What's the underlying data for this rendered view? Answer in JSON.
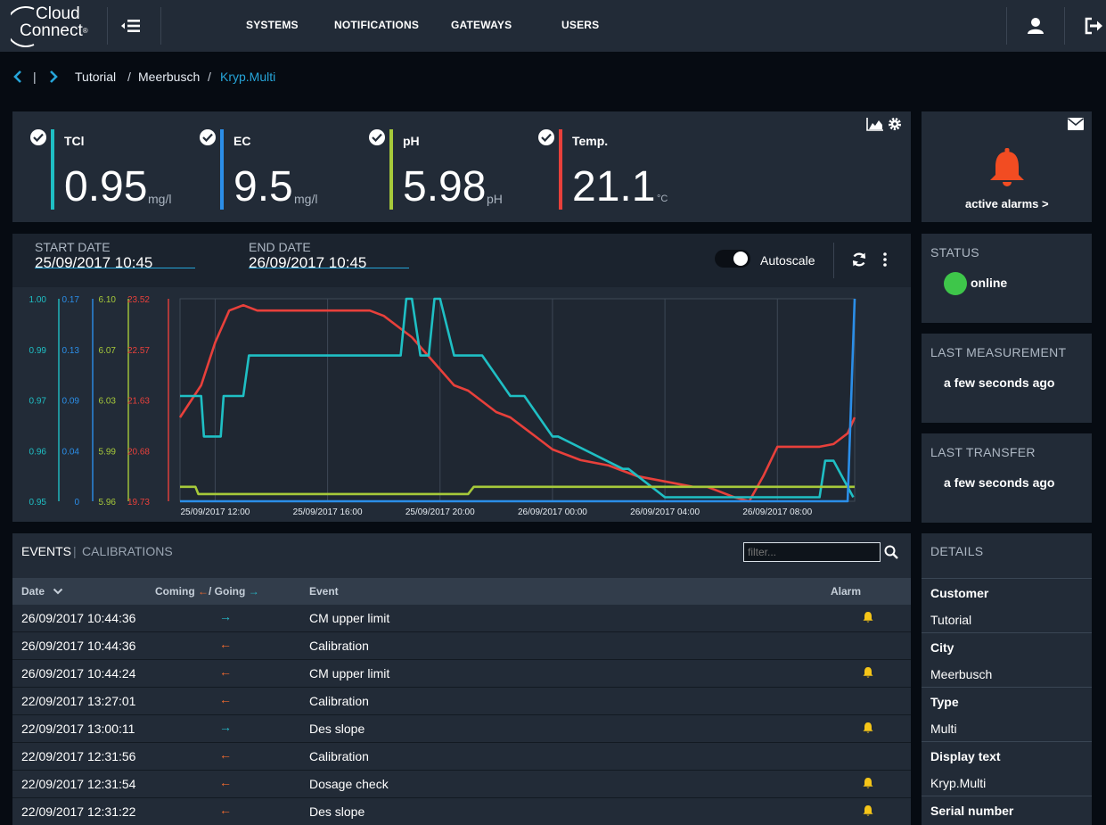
{
  "brand": {
    "line1": "Cloud",
    "line2": "Connect",
    "mark": "®"
  },
  "nav": {
    "items": [
      "SYSTEMS",
      "NOTIFICATIONS",
      "GATEWAYS",
      "USERS"
    ]
  },
  "breadcrumb": {
    "separator": "|",
    "items": [
      "Tutorial",
      "Meerbusch",
      "Kryp.Multi"
    ],
    "slash": "/"
  },
  "kpis": [
    {
      "name": "TCl",
      "value": "0.95",
      "unit": "mg/l",
      "color": "#1fbfc4"
    },
    {
      "name": "EC",
      "value": "9.5",
      "unit": "mg/l",
      "color": "#2b8ee8"
    },
    {
      "name": "pH",
      "value": "5.98",
      "unit": "pH",
      "color": "#a6c93a"
    },
    {
      "name": "Temp.",
      "value": "21.1",
      "unit": "°C",
      "color": "#e8403b"
    }
  ],
  "alarms": {
    "label": "active alarms >",
    "color": "#f24c22"
  },
  "status": {
    "title": "STATUS",
    "value": "online",
    "color": "#3ec64a"
  },
  "last_measurement": {
    "title": "LAST MEASUREMENT",
    "value": "a few seconds ago"
  },
  "last_transfer": {
    "title": "LAST TRANSFER",
    "value": "a few seconds ago"
  },
  "chart_controls": {
    "start_label": "START DATE",
    "start_value": "25/09/2017 10:45",
    "end_label": "END DATE",
    "end_value": "26/09/2017 10:45",
    "autoscale_label": "Autoscale",
    "autoscale_on": true
  },
  "chart_data": {
    "type": "line",
    "x_ticks": [
      "25/09/2017 12:00",
      "25/09/2017 16:00",
      "25/09/2017 20:00",
      "26/09/2017 00:00",
      "26/09/2017 04:00",
      "26/09/2017 08:00"
    ],
    "y_axes": [
      {
        "name": "TCl",
        "color": "#1fbfc4",
        "ticks": [
          "1.00",
          "0.99",
          "0.97",
          "0.96",
          "0.95"
        ],
        "ylim": [
          0.95,
          1.0
        ]
      },
      {
        "name": "EC",
        "color": "#2b8ee8",
        "ticks": [
          "0.17",
          "0.13",
          "0.09",
          "0.04",
          "0"
        ],
        "ylim": [
          0,
          0.17
        ]
      },
      {
        "name": "pH",
        "color": "#a6c93a",
        "ticks": [
          "6.10",
          "6.07",
          "6.03",
          "5.99",
          "5.96"
        ],
        "ylim": [
          5.96,
          6.1
        ]
      },
      {
        "name": "Temp.",
        "color": "#e8403b",
        "ticks": [
          "23.52",
          "22.57",
          "21.63",
          "20.68",
          "19.73"
        ],
        "ylim": [
          19.73,
          23.52
        ]
      }
    ],
    "xlim": [
      10.75,
      34.75
    ],
    "series": [
      {
        "name": "Temp.",
        "axis": 3,
        "color": "#e8403b",
        "x": [
          10.75,
          11.0,
          11.5,
          12.0,
          12.5,
          13.0,
          13.5,
          14.0,
          14.5,
          15.0,
          15.5,
          16.0,
          16.5,
          17.0,
          17.5,
          18.0,
          18.5,
          19.0,
          19.5,
          20.0,
          20.5,
          21.0,
          21.5,
          22.0,
          22.5,
          23.0,
          23.5,
          24.0,
          24.5,
          25.0,
          25.5,
          26.0,
          26.5,
          27.0,
          27.5,
          28.0,
          28.5,
          29.0,
          29.5,
          30.0,
          30.5,
          31.0,
          31.5,
          32.0,
          32.5,
          33.0,
          33.5,
          34.0,
          34.5,
          34.75
        ],
        "values": [
          21.3,
          21.5,
          21.9,
          22.7,
          23.3,
          23.4,
          23.3,
          23.3,
          23.3,
          23.3,
          23.3,
          23.3,
          23.3,
          23.3,
          23.3,
          23.2,
          23.0,
          22.8,
          22.5,
          22.2,
          21.9,
          21.8,
          21.6,
          21.4,
          21.3,
          21.1,
          20.9,
          20.7,
          20.6,
          20.5,
          20.45,
          20.4,
          20.3,
          20.2,
          20.15,
          20.1,
          20.05,
          20.0,
          20.0,
          19.9,
          19.8,
          19.73,
          20.2,
          20.75,
          20.75,
          20.75,
          20.75,
          20.8,
          21.0,
          21.3
        ]
      },
      {
        "name": "TCl",
        "axis": 0,
        "color": "#1fbfc4",
        "x": [
          10.75,
          11.5,
          11.6,
          12.2,
          12.3,
          13.0,
          13.2,
          16.0,
          16.5,
          17.5,
          18.6,
          18.8,
          19.0,
          19.3,
          19.6,
          19.8,
          20.0,
          20.5,
          21.0,
          21.3,
          21.5,
          22.5,
          23.0,
          24.0,
          24.2,
          26.5,
          26.7,
          28.0,
          28.2,
          31.5,
          31.8,
          33.5,
          33.7,
          34.0,
          34.7
        ],
        "values": [
          0.976,
          0.976,
          0.966,
          0.966,
          0.976,
          0.976,
          0.986,
          0.986,
          0.986,
          0.986,
          0.986,
          1.0,
          1.0,
          0.986,
          0.986,
          1.0,
          1.0,
          0.986,
          0.986,
          0.986,
          0.986,
          0.976,
          0.976,
          0.966,
          0.966,
          0.958,
          0.958,
          0.951,
          0.951,
          0.951,
          0.951,
          0.951,
          0.96,
          0.96,
          0.951
        ]
      },
      {
        "name": "pH",
        "axis": 2,
        "color": "#a6c93a",
        "x": [
          10.75,
          11.3,
          11.4,
          19.5,
          20.5,
          21.0,
          21.2,
          34.75
        ],
        "values": [
          5.97,
          5.97,
          5.965,
          5.965,
          5.965,
          5.965,
          5.97,
          5.97
        ]
      },
      {
        "name": "EC",
        "axis": 1,
        "color": "#2b8ee8",
        "x": [
          10.75,
          34.5,
          34.75
        ],
        "values": [
          0.0,
          0.0,
          0.17
        ]
      }
    ]
  },
  "events": {
    "tab_events": "EVENTS",
    "tab_separator": "|",
    "tab_calibrations": "CALIBRATIONS",
    "filter_placeholder": "filter...",
    "headers": {
      "date": "Date",
      "coming": "Coming",
      "going": "/ Going",
      "event": "Event",
      "alarm": "Alarm"
    },
    "rows": [
      {
        "date": "26/09/2017 10:44:36",
        "direction": "going",
        "arrow": "→",
        "event": "CM upper limit",
        "alarm": true
      },
      {
        "date": "26/09/2017 10:44:36",
        "direction": "coming",
        "arrow": "←",
        "event": "Calibration",
        "alarm": false
      },
      {
        "date": "26/09/2017 10:44:24",
        "direction": "coming",
        "arrow": "←",
        "event": "CM upper limit",
        "alarm": true
      },
      {
        "date": "22/09/2017 13:27:01",
        "direction": "coming",
        "arrow": "←",
        "event": "Calibration",
        "alarm": false
      },
      {
        "date": "22/09/2017 13:00:11",
        "direction": "going",
        "arrow": "→",
        "event": "Des slope",
        "alarm": true
      },
      {
        "date": "22/09/2017 12:31:56",
        "direction": "coming",
        "arrow": "←",
        "event": "Calibration",
        "alarm": false
      },
      {
        "date": "22/09/2017 12:31:54",
        "direction": "coming",
        "arrow": "←",
        "event": "Dosage check",
        "alarm": true
      },
      {
        "date": "22/09/2017 12:31:22",
        "direction": "coming",
        "arrow": "←",
        "event": "Des slope",
        "alarm": true
      }
    ]
  },
  "details": {
    "title": "DETAILS",
    "items": [
      {
        "label": "Customer",
        "value": "Tutorial"
      },
      {
        "label": "City",
        "value": "Meerbusch"
      },
      {
        "label": "Type",
        "value": "Multi"
      },
      {
        "label": "Display text",
        "value": "Kryp.Multi"
      },
      {
        "label": "Serial number",
        "value": ""
      }
    ]
  }
}
